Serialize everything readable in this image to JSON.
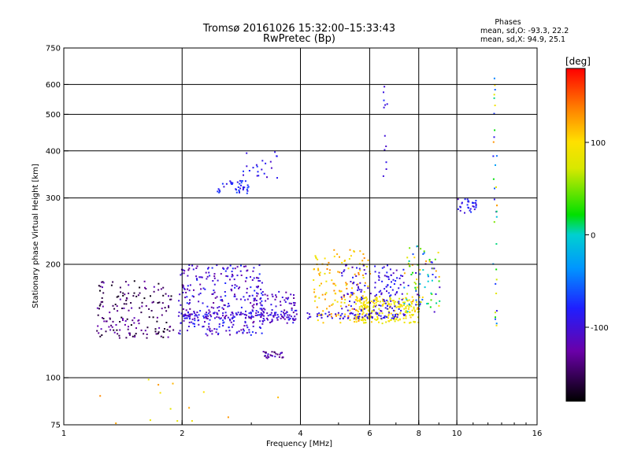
{
  "chart_data": {
    "type": "scatter",
    "title": "Tromsø 20161026 15:32:00–15:33:43",
    "subtitle": "RwPretec (Bp)",
    "stats": {
      "heading": "Phases",
      "line_o": "mean, sd,O: -93.3, 22.2",
      "line_x": "mean, sd,X:  94.9, 25.1"
    },
    "xlabel": "Frequency [MHz]",
    "ylabel": "Stationary phase Virtual Height [km]",
    "xscale": "log2",
    "yscale": "log",
    "xlim": [
      1,
      16
    ],
    "ylim": [
      75,
      750
    ],
    "x_ticks": [
      1,
      2,
      4,
      6,
      8,
      10,
      16
    ],
    "y_ticks": [
      75,
      100,
      200,
      300,
      400,
      500,
      600,
      750
    ],
    "x_grid": [
      2,
      4,
      6,
      8,
      10
    ],
    "y_grid": [
      100,
      200,
      300,
      400,
      500,
      600
    ],
    "grid": true,
    "colorbar": {
      "label": "[deg]",
      "range": [
        -180,
        180
      ],
      "ticks": [
        100,
        0,
        -100
      ]
    },
    "clusters": [
      {
        "name": "low-freq-band",
        "x": [
          1.2,
          1.9
        ],
        "y": [
          128,
          182
        ],
        "phase": [
          -175,
          -115
        ],
        "n": 170
      },
      {
        "name": "band-2-3",
        "x": [
          1.95,
          3.2
        ],
        "y": [
          130,
          200
        ],
        "phase": [
          -135,
          -70
        ],
        "n": 300
      },
      {
        "name": "band-3-4",
        "x": [
          3.0,
          3.9
        ],
        "y": [
          140,
          170
        ],
        "phase": [
          -135,
          -80
        ],
        "n": 90
      },
      {
        "name": "trace-145km",
        "x": [
          1.95,
          3.9
        ],
        "y": [
          144,
          150
        ],
        "phase": [
          -120,
          -80
        ],
        "n": 110
      },
      {
        "name": "upper-trace-2.5",
        "x": [
          2.45,
          3.0
        ],
        "y": [
          310,
          335
        ],
        "phase": [
          -100,
          -60
        ],
        "n": 40
      },
      {
        "name": "rising-trace",
        "x": [
          2.8,
          3.55
        ],
        "y": [
          330,
          400
        ],
        "phase": [
          -110,
          -70
        ],
        "n": 22
      },
      {
        "name": "trace-115km",
        "x": [
          3.2,
          3.6
        ],
        "y": [
          113,
          118
        ],
        "phase": [
          -150,
          -100
        ],
        "n": 28
      },
      {
        "name": "orange-band",
        "x": [
          4.3,
          6.0
        ],
        "y": [
          140,
          220
        ],
        "phase": [
          80,
          140
        ],
        "n": 150
      },
      {
        "name": "yellow-band",
        "x": [
          5.5,
          8.0
        ],
        "y": [
          140,
          165
        ],
        "phase": [
          70,
          110
        ],
        "n": 220
      },
      {
        "name": "mid-band",
        "x": [
          5.0,
          7.3
        ],
        "y": [
          150,
          200
        ],
        "phase": [
          -115,
          -75
        ],
        "n": 130
      },
      {
        "name": "right-band",
        "x": [
          7.3,
          9.0
        ],
        "y": [
          150,
          225
        ],
        "phase": [
          -130,
          130
        ],
        "n": 90
      },
      {
        "name": "trace-145km-2",
        "x": [
          4.1,
          7.5
        ],
        "y": [
          144,
          150
        ],
        "phase": [
          -110,
          -80
        ],
        "n": 70
      },
      {
        "name": "column-6.6",
        "x": [
          6.45,
          6.7
        ],
        "y": [
          330,
          600
        ],
        "phase": [
          -110,
          -70
        ],
        "n": 12
      },
      {
        "name": "top-right",
        "x": [
          10.0,
          11.2
        ],
        "y": [
          275,
          300
        ],
        "phase": [
          -110,
          -70
        ],
        "n": 30
      },
      {
        "name": "column-12.5",
        "x": [
          12.3,
          12.6
        ],
        "y": [
          130,
          630
        ],
        "phase": [
          -120,
          130
        ],
        "n": 35
      },
      {
        "name": "scattered-low",
        "x": [
          1.1,
          3.6
        ],
        "y": [
          76,
          100
        ],
        "phase": [
          80,
          140
        ],
        "n": 14
      }
    ]
  }
}
